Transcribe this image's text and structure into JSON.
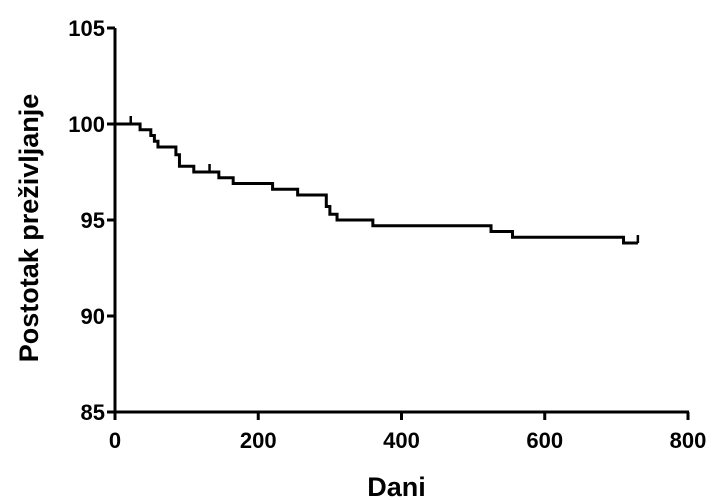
{
  "chart_data": {
    "type": "line",
    "title": "",
    "xlabel": "Dani",
    "ylabel": "Postotak preživljanje",
    "xlim": [
      0,
      800
    ],
    "ylim": [
      85,
      105
    ],
    "xticks": [
      0,
      200,
      400,
      600,
      800
    ],
    "yticks": [
      85,
      90,
      95,
      100,
      105
    ],
    "grid": false,
    "legend": "none",
    "series": [
      {
        "step": true,
        "color": "#000000",
        "x": [
          0,
          35,
          50,
          55,
          60,
          85,
          90,
          110,
          145,
          165,
          220,
          255,
          295,
          300,
          310,
          360,
          525,
          555,
          710,
          730
        ],
        "y": [
          100,
          99.7,
          99.4,
          99.1,
          98.8,
          98.4,
          97.8,
          97.5,
          97.2,
          96.9,
          96.6,
          96.3,
          95.7,
          95.3,
          95.0,
          94.7,
          94.4,
          94.1,
          93.8,
          93.8
        ],
        "censored_x": [
          22,
          85,
          132,
          730
        ]
      }
    ]
  }
}
